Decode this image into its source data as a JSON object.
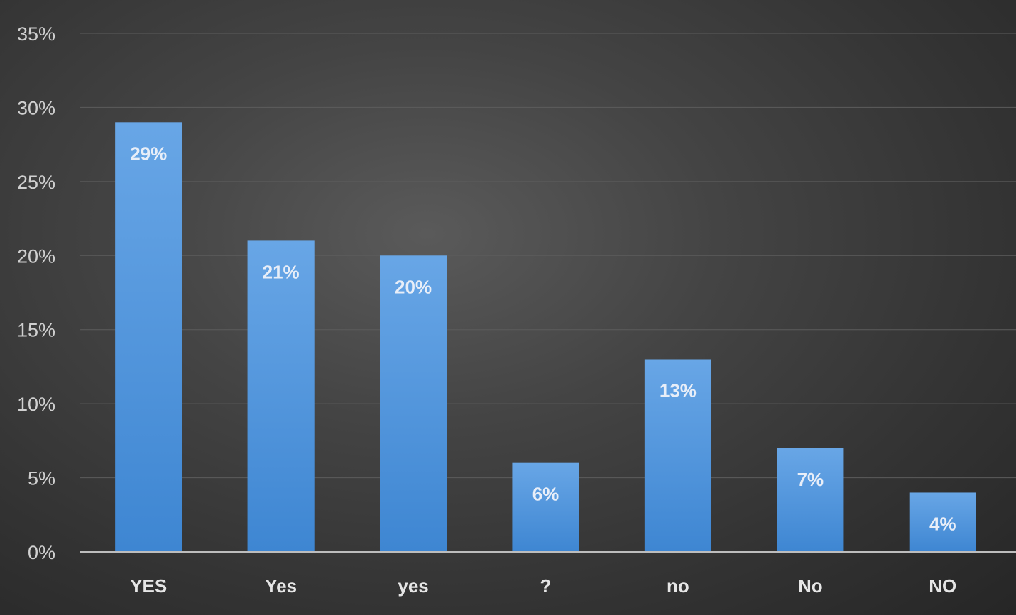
{
  "chart_data": {
    "type": "bar",
    "title": "",
    "xlabel": "",
    "ylabel": "",
    "categories": [
      "YES",
      "Yes",
      "yes",
      "?",
      "no",
      "No",
      "NO"
    ],
    "values": [
      29,
      21,
      20,
      6,
      13,
      7,
      4
    ],
    "data_labels": [
      "29%",
      "21%",
      "20%",
      "6%",
      "13%",
      "7%",
      "4%"
    ],
    "ylim": [
      0,
      35
    ],
    "yticks": [
      0,
      5,
      10,
      15,
      20,
      25,
      30,
      35
    ],
    "ytick_labels": [
      "0%",
      "5%",
      "10%",
      "15%",
      "20%",
      "25%",
      "30%",
      "35%"
    ],
    "grid": true,
    "legend": "none",
    "colors": {
      "bar_top": "#68a6e6",
      "bar_bottom": "#3e86d2",
      "grid": "#5c5c5c",
      "axis": "#bdbdbd"
    }
  }
}
